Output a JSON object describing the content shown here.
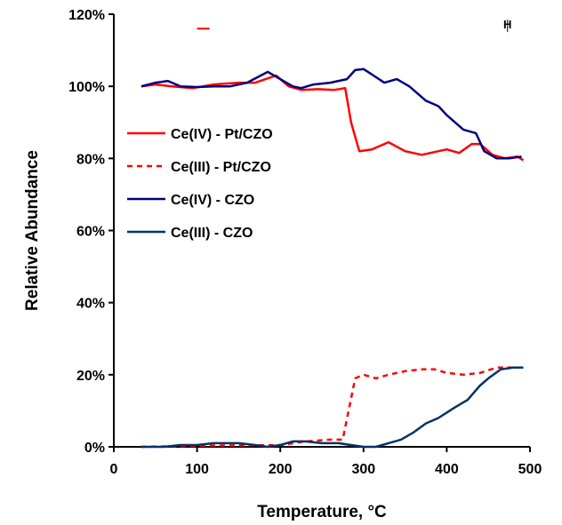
{
  "chart_data": {
    "type": "line",
    "title": "",
    "xlabel": "Temperature, °C",
    "ylabel": "Relative Abundance",
    "xlim": [
      0,
      500
    ],
    "ylim": [
      0,
      120
    ],
    "x_ticks": [
      "0",
      "100",
      "200",
      "300",
      "400",
      "500"
    ],
    "y_ticks": [
      "0%",
      "20%",
      "40%",
      "60%",
      "80%",
      "100%",
      "120%"
    ],
    "grid": false,
    "legend_position": "left",
    "annotations": [
      {
        "text": "H",
        "x": 473,
        "y": 117.5
      }
    ],
    "series": [
      {
        "name": "Ce(IV) - Pt/CZO",
        "color": "#ff0000",
        "dash": "solid",
        "points": [
          [
            33,
            100
          ],
          [
            50,
            100.5
          ],
          [
            70,
            100
          ],
          [
            95,
            99.5
          ],
          [
            120,
            100.5
          ],
          [
            150,
            101
          ],
          [
            170,
            101
          ],
          [
            195,
            103
          ],
          [
            210,
            100
          ],
          [
            225,
            99
          ],
          [
            245,
            99.2
          ],
          [
            265,
            99
          ],
          [
            278,
            99.5
          ],
          [
            285,
            90
          ],
          [
            295,
            82
          ],
          [
            310,
            82.5
          ],
          [
            330,
            84.5
          ],
          [
            350,
            82
          ],
          [
            370,
            81
          ],
          [
            390,
            82
          ],
          [
            400,
            82.5
          ],
          [
            415,
            81.5
          ],
          [
            430,
            84
          ],
          [
            440,
            84
          ],
          [
            455,
            81
          ],
          [
            470,
            80
          ],
          [
            485,
            80.5
          ],
          [
            492,
            79.5
          ]
        ]
      },
      {
        "name": "Ce(III) - Pt/CZO",
        "color": "#ff0000",
        "dash": "dashed",
        "points": [
          [
            33,
            0
          ],
          [
            100,
            0.3
          ],
          [
            200,
            0.5
          ],
          [
            230,
            1.5
          ],
          [
            260,
            2
          ],
          [
            275,
            2
          ],
          [
            282,
            10
          ],
          [
            290,
            19
          ],
          [
            300,
            20
          ],
          [
            315,
            19
          ],
          [
            330,
            20
          ],
          [
            350,
            21
          ],
          [
            370,
            21.5
          ],
          [
            385,
            21.5
          ],
          [
            400,
            20.5
          ],
          [
            420,
            20
          ],
          [
            440,
            20.5
          ],
          [
            460,
            22
          ],
          [
            492,
            22
          ]
        ]
      },
      {
        "name": "Ce(IV) - CZO",
        "color": "#000080",
        "dash": "solid",
        "points": [
          [
            33,
            100
          ],
          [
            50,
            101
          ],
          [
            65,
            101.5
          ],
          [
            80,
            100
          ],
          [
            100,
            99.8
          ],
          [
            120,
            100
          ],
          [
            140,
            100
          ],
          [
            160,
            101
          ],
          [
            185,
            104
          ],
          [
            200,
            102
          ],
          [
            215,
            100
          ],
          [
            225,
            99.5
          ],
          [
            240,
            100.5
          ],
          [
            260,
            101
          ],
          [
            280,
            102
          ],
          [
            290,
            104.5
          ],
          [
            300,
            104.8
          ],
          [
            312,
            103
          ],
          [
            325,
            101
          ],
          [
            340,
            102
          ],
          [
            355,
            100
          ],
          [
            375,
            96
          ],
          [
            390,
            94.5
          ],
          [
            400,
            92
          ],
          [
            420,
            88
          ],
          [
            435,
            87
          ],
          [
            445,
            82
          ],
          [
            460,
            80
          ],
          [
            475,
            80
          ],
          [
            490,
            80.5
          ]
        ]
      },
      {
        "name": "Ce(III) - CZO",
        "color": "#003366",
        "dash": "solid",
        "points": [
          [
            33,
            0
          ],
          [
            60,
            0
          ],
          [
            80,
            0.5
          ],
          [
            100,
            0.5
          ],
          [
            120,
            1
          ],
          [
            150,
            1
          ],
          [
            170,
            0.5
          ],
          [
            185,
            0
          ],
          [
            200,
            0.5
          ],
          [
            215,
            1.5
          ],
          [
            230,
            1.5
          ],
          [
            250,
            1
          ],
          [
            270,
            1
          ],
          [
            285,
            0.5
          ],
          [
            300,
            0
          ],
          [
            315,
            0
          ],
          [
            330,
            1
          ],
          [
            345,
            2
          ],
          [
            360,
            4
          ],
          [
            375,
            6.5
          ],
          [
            390,
            8
          ],
          [
            410,
            11
          ],
          [
            425,
            13
          ],
          [
            440,
            17
          ],
          [
            450,
            19
          ],
          [
            465,
            21.5
          ],
          [
            480,
            22
          ],
          [
            492,
            22
          ]
        ]
      }
    ]
  }
}
